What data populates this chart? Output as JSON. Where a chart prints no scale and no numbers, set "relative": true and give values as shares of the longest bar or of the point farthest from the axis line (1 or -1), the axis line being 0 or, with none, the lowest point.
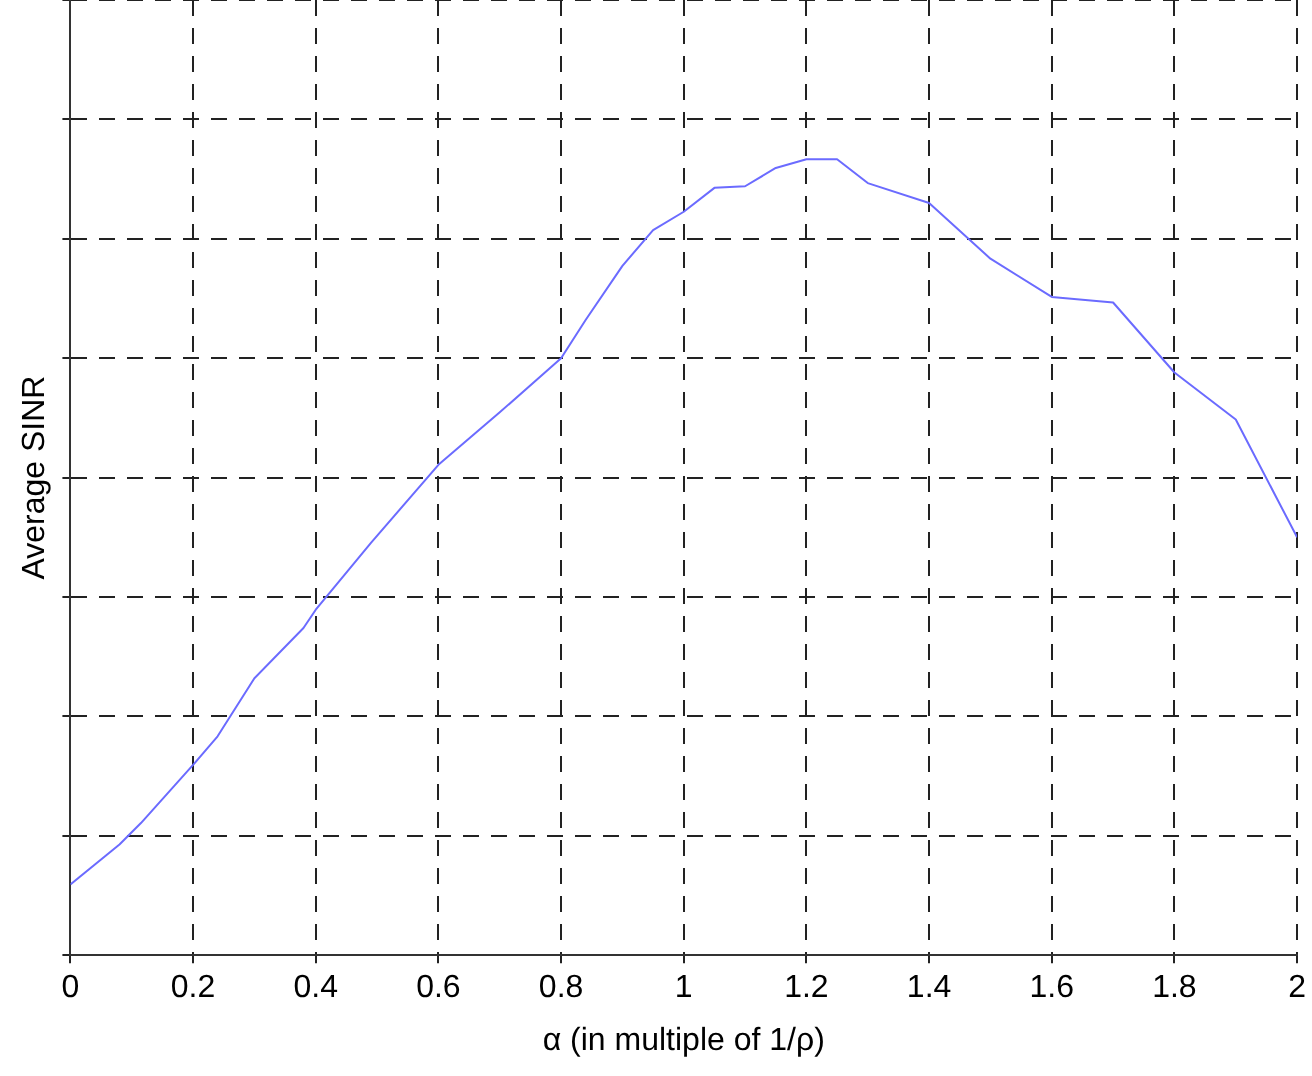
{
  "chart_data": {
    "type": "line",
    "relative": true,
    "xlabel": "α (in multiple of 1/ρ)",
    "ylabel": "Average SINR",
    "xlim": [
      0,
      2
    ],
    "xticks": [
      0,
      0.2,
      0.4,
      0.6,
      0.8,
      1,
      1.2,
      1.4,
      1.6,
      1.8,
      2
    ],
    "grid": true,
    "marker": "none",
    "line_style": "solid",
    "series": [
      {
        "color": "#6b6bff",
        "x": [
          0,
          0.08,
          0.115,
          0.2,
          0.24,
          0.3,
          0.38,
          0.4,
          0.49,
          0.6,
          0.7,
          0.8,
          0.84,
          0.9,
          0.95,
          1.0,
          1.05,
          1.1,
          1.15,
          1.2,
          1.25,
          1.3,
          1.4,
          1.5,
          1.6,
          1.7,
          1.8,
          1.9,
          2.0
        ],
        "values": [
          0.089,
          0.139,
          0.166,
          0.239,
          0.275,
          0.348,
          0.411,
          0.434,
          0.518,
          0.616,
          0.682,
          0.75,
          0.798,
          0.866,
          0.911,
          0.934,
          0.964,
          0.966,
          0.989,
          1,
          1,
          0.97,
          0.945,
          0.875,
          0.827,
          0.82,
          0.732,
          0.673,
          0.525
        ]
      }
    ]
  }
}
